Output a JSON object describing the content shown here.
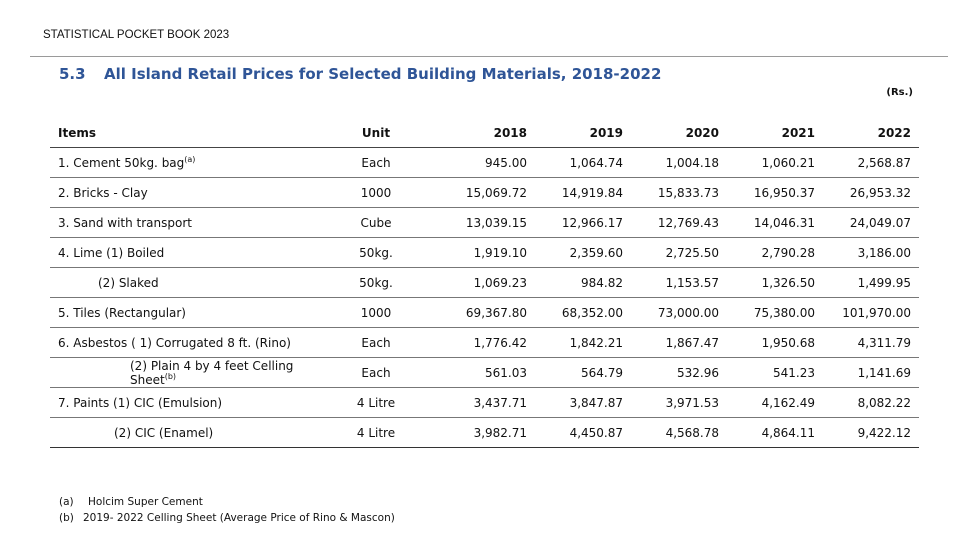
{
  "header": {
    "book_title": "STATISTICAL POCKET BOOK 2023"
  },
  "section": {
    "number": "5.3",
    "title": "All Island Retail Prices for Selected Building Materials, 2018-2022",
    "currency_note": "(Rs.)"
  },
  "table": {
    "columns": [
      "Items",
      "Unit",
      "2018",
      "2019",
      "2020",
      "2021",
      "2022"
    ],
    "rows": [
      {
        "item": "1. Cement 50kg. bag",
        "sup": "(a)",
        "unit": "Each",
        "values": [
          "945.00",
          "1,064.74",
          "1,004.18",
          "1,060.21",
          "2,568.87"
        ]
      },
      {
        "item": "2.  Bricks -  Clay",
        "sup": "",
        "unit": "1000",
        "values": [
          "15,069.72",
          "14,919.84",
          "15,833.73",
          "16,950.37",
          "26,953.32"
        ]
      },
      {
        "item": "3. Sand with transport",
        "sup": "",
        "unit": "Cube",
        "values": [
          "13,039.15",
          "12,966.17",
          "12,769.43",
          "14,046.31",
          "24,049.07"
        ]
      },
      {
        "item": "4. Lime (1) Boiled",
        "sup": "",
        "unit": "50kg.",
        "values": [
          "1,919.10",
          "2,359.60",
          "2,725.50",
          "2,790.28",
          "3,186.00"
        ]
      },
      {
        "item": "(2) Slaked",
        "sup": "",
        "unit": "50kg.",
        "values": [
          "1,069.23",
          "984.82",
          "1,153.57",
          "1,326.50",
          "1,499.95"
        ]
      },
      {
        "item": "5. Tiles (Rectangular)",
        "sup": "",
        "unit": "1000",
        "values": [
          "69,367.80",
          "68,352.00",
          "73,000.00",
          "75,380.00",
          "101,970.00"
        ]
      },
      {
        "item": "6. Asbestos  ( 1) Corrugated 8 ft. (Rino)",
        "sup": "",
        "unit": "Each",
        "values": [
          "1,776.42",
          "1,842.21",
          "1,867.47",
          "1,950.68",
          "4,311.79"
        ]
      },
      {
        "item": "(2) Plain 4 by 4 feet Celling Sheet",
        "sup": "(b)",
        "unit": "Each",
        "values": [
          "561.03",
          "564.79",
          "532.96",
          "541.23",
          "1,141.69"
        ]
      },
      {
        "item": "7. Paints   (1) CIC (Emulsion)",
        "sup": "",
        "unit": "4 Litre",
        "values": [
          "3,437.71",
          "3,847.87",
          "3,971.53",
          "4,162.49",
          "8,082.22"
        ]
      },
      {
        "item": "(2) CIC (Enamel)",
        "sup": "",
        "unit": "4 Litre",
        "values": [
          "3,982.71",
          "4,450.87",
          "4,568.78",
          "4,864.11",
          "9,422.12"
        ]
      }
    ]
  },
  "footnotes": [
    {
      "mark": "(a)",
      "text": "Holcim Super Cement"
    },
    {
      "mark": "(b)",
      "text": "2019- 2022 Celling Sheet (Average Price of Rino & Mascon)"
    }
  ]
}
